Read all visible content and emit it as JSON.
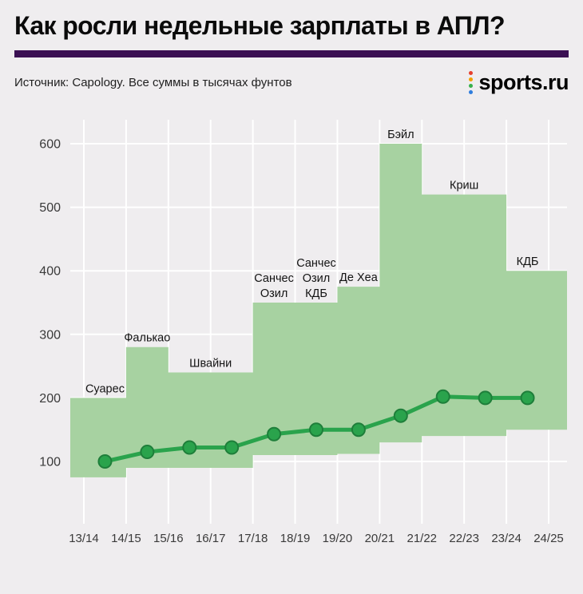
{
  "header": {
    "title": "Как росли недельные зарплаты в АПЛ?",
    "source": "Источник: Capology. Все суммы в тысячах фунтов",
    "logo_text": "sports.ru",
    "accent_color": "#3b1053",
    "logo_dot_colors": [
      "#e6402e",
      "#f2a000",
      "#37b04a",
      "#2e7ddd"
    ]
  },
  "chart_data": {
    "type": "area",
    "title": "Как росли недельные зарплаты в АПЛ?",
    "subtitle": "Источник: Capology. Все суммы в тысячах фунтов",
    "x_tick_labels": [
      "13/14",
      "14/15",
      "15/16",
      "16/17",
      "17/18",
      "18/19",
      "19/20",
      "20/21",
      "21/22",
      "22/23",
      "23/24",
      "24/25"
    ],
    "y_ticks": [
      100,
      200,
      300,
      400,
      500,
      600
    ],
    "ylim": [
      0,
      640
    ],
    "grid": true,
    "bands": {
      "tops": [
        200,
        280,
        240,
        240,
        350,
        350,
        375,
        600,
        520,
        520,
        400
      ],
      "bottoms": [
        75,
        90,
        90,
        90,
        110,
        110,
        112,
        130,
        140,
        140,
        150
      ]
    },
    "line": {
      "values": [
        100,
        115,
        122,
        122,
        143,
        150,
        150,
        172,
        202,
        200,
        200
      ]
    },
    "annotations": [
      {
        "lines": [
          "Суарес"
        ],
        "x": 0.5,
        "value": 200
      },
      {
        "lines": [
          "Фалькао"
        ],
        "x": 1.5,
        "value": 280
      },
      {
        "lines": [
          "Швайни"
        ],
        "x": 3.0,
        "value": 240
      },
      {
        "lines": [
          "Санчес",
          "Озил"
        ],
        "x": 4.5,
        "value": 350
      },
      {
        "lines": [
          "Санчес",
          "Озил",
          "КДБ"
        ],
        "x": 5.5,
        "value": 350
      },
      {
        "lines": [
          "Де Хеа"
        ],
        "x": 6.5,
        "value": 375
      },
      {
        "lines": [
          "Бэйл"
        ],
        "x": 7.5,
        "value": 600
      },
      {
        "lines": [
          "Криш"
        ],
        "x": 9.0,
        "value": 520
      },
      {
        "lines": [
          "КДБ"
        ],
        "x": 10.5,
        "value": 400
      }
    ],
    "colors": {
      "band": "#a7d2a1",
      "line": "#2aa34c",
      "marker_stroke": "#1e7e3a",
      "grid": "#ffffff",
      "background": "#efedef"
    }
  }
}
